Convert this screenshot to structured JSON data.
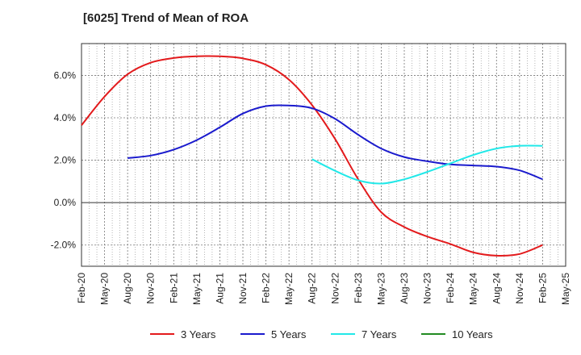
{
  "chart_data": {
    "type": "line",
    "title": "[6025]  Trend of Mean of ROA",
    "xlabel": "",
    "ylabel": "",
    "ylim": [
      -3.0,
      7.5
    ],
    "yticks": [
      -2.0,
      0.0,
      2.0,
      4.0,
      6.0
    ],
    "ytick_labels": [
      "-2.0%",
      "0.0%",
      "2.0%",
      "4.0%",
      "6.0%"
    ],
    "x_labels": [
      "Feb-20",
      "May-20",
      "Aug-20",
      "Nov-20",
      "Feb-21",
      "May-21",
      "Aug-21",
      "Nov-21",
      "Feb-22",
      "May-22",
      "Aug-22",
      "Nov-22",
      "Feb-23",
      "May-23",
      "Aug-23",
      "Nov-23",
      "Feb-24",
      "May-24",
      "Aug-24",
      "Nov-24",
      "Feb-25",
      "May-25"
    ],
    "grid": true,
    "legend_position": "bottom",
    "series": [
      {
        "name": "3 Years",
        "color": "#e31a1c",
        "points": [
          [
            0,
            3.65
          ],
          [
            1,
            5.0
          ],
          [
            2,
            6.05
          ],
          [
            3,
            6.6
          ],
          [
            4,
            6.82
          ],
          [
            5,
            6.9
          ],
          [
            6,
            6.9
          ],
          [
            7,
            6.8
          ],
          [
            8,
            6.5
          ],
          [
            9,
            5.8
          ],
          [
            10,
            4.6
          ],
          [
            11,
            3.0
          ],
          [
            12,
            1.1
          ],
          [
            13,
            -0.45
          ],
          [
            14,
            -1.15
          ],
          [
            15,
            -1.6
          ],
          [
            16,
            -1.95
          ],
          [
            17,
            -2.35
          ],
          [
            18,
            -2.5
          ],
          [
            19,
            -2.42
          ],
          [
            20,
            -2.0
          ]
        ]
      },
      {
        "name": "5 Years",
        "color": "#1a1acd",
        "points": [
          [
            2,
            2.1
          ],
          [
            3,
            2.22
          ],
          [
            4,
            2.5
          ],
          [
            5,
            2.95
          ],
          [
            6,
            3.55
          ],
          [
            7,
            4.2
          ],
          [
            8,
            4.55
          ],
          [
            9,
            4.58
          ],
          [
            10,
            4.45
          ],
          [
            11,
            3.95
          ],
          [
            12,
            3.2
          ],
          [
            13,
            2.55
          ],
          [
            14,
            2.15
          ],
          [
            15,
            1.95
          ],
          [
            16,
            1.8
          ],
          [
            17,
            1.75
          ],
          [
            18,
            1.7
          ],
          [
            19,
            1.52
          ],
          [
            20,
            1.1
          ]
        ]
      },
      {
        "name": "7 Years",
        "color": "#22e8e8",
        "points": [
          [
            10,
            2.05
          ],
          [
            11,
            1.5
          ],
          [
            12,
            1.05
          ],
          [
            13,
            0.9
          ],
          [
            14,
            1.1
          ],
          [
            15,
            1.45
          ],
          [
            16,
            1.85
          ],
          [
            17,
            2.25
          ],
          [
            18,
            2.55
          ],
          [
            19,
            2.68
          ],
          [
            20,
            2.68
          ]
        ]
      },
      {
        "name": "10 Years",
        "color": "#228b22",
        "points": []
      }
    ]
  }
}
